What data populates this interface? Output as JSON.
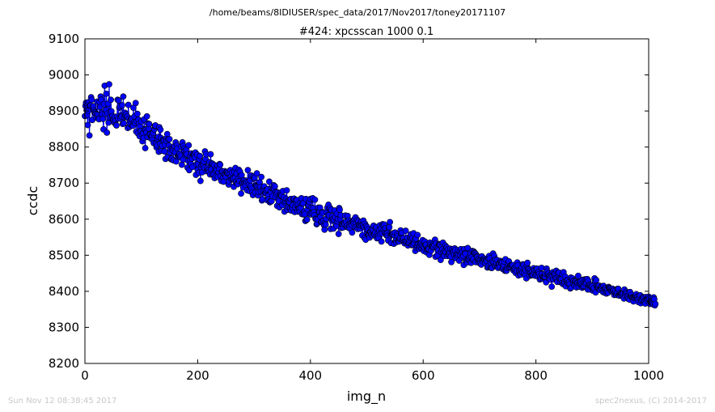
{
  "header": {
    "file_path": "/home/beams/8IDIUSER/spec_data/2017/Nov2017/toney20171107"
  },
  "footer": {
    "timestamp": "Sun Nov 12 08:38:45 2017",
    "credit": "spec2nexus, (C) 2014-2017"
  },
  "chart_data": {
    "type": "line",
    "title": "#424: xpcsscan 1000 0.1",
    "xlabel": "img_n",
    "ylabel": "ccdc",
    "xlim": [
      0,
      1000
    ],
    "ylim": [
      8200,
      9100
    ],
    "xticks": [
      0,
      200,
      400,
      600,
      800,
      1000
    ],
    "yticks": [
      8200,
      8300,
      8400,
      8500,
      8600,
      8700,
      8800,
      8900,
      9000,
      9100
    ],
    "grid": false,
    "marker": "circle",
    "series_color": "#0000ff",
    "marker_face_color": "#0000ff",
    "marker_edge_color": "#000000",
    "series": [
      {
        "x_start": 0,
        "x_step": 1,
        "values": [
          8886,
          8914,
          8923,
          8902,
          8889,
          8861,
          8900,
          8925,
          8832,
          8916,
          8915,
          8938,
          8931,
          8875,
          8911,
          8913,
          8902,
          8897,
          8895,
          8892,
          8882,
          8891,
          8926,
          8889,
          8879,
          8877,
          8925,
          8911,
          8940,
          8931,
          8895,
          8891,
          8878,
          8849,
          8919,
          8970,
          8892,
          8903,
          8948,
          8840,
          8893,
          8920,
          8868,
          8974,
          8881,
          8897,
          8931,
          8899,
          8880,
          8886,
          8877,
          8874,
          8868,
          8884,
          8873,
          8862,
          8860,
          8884,
          8931,
          8879,
          8929,
          8909,
          8913,
          8879,
          8888,
          8885,
          8916,
          8864,
          8940,
          8866,
          8883,
          8895,
          8887,
          8891,
          8883,
          8885,
          8853,
          8917,
          8879,
          8856,
          8872,
          8863,
          8879,
          8877,
          8860,
          8859,
          8909,
          8869,
          8885,
          8866,
          8922,
          8843,
          8872,
          8892,
          8838,
          8876,
          8865,
          8830,
          8857,
          8844,
          8871,
          8835,
          8816,
          8839,
          8825,
          8877,
          8849,
          8797,
          8848,
          8841,
          8885,
          8828,
          8865,
          8851,
          8864,
          8836,
          8835,
          8824,
          8830,
          8831,
          8820,
          8839,
          8811,
          8849,
          8858,
          8860,
          8809,
          8799,
          8805,
          8823,
          8828,
          8787,
          8855,
          8809,
          8848,
          8825,
          8790,
          8804,
          8818,
          8820,
          8818,
          8788,
          8807,
          8767,
          8823,
          8817,
          8836,
          8773,
          8822,
          8804,
          8822,
          8785,
          8795,
          8766,
          8768,
          8796,
          8791,
          8763,
          8799,
          8803,
          8785,
          8813,
          8760,
          8805,
          8796,
          8774,
          8777,
          8778,
          8781,
          8772,
          8776,
          8801,
          8751,
          8813,
          8765,
          8803,
          8795,
          8789,
          8778,
          8782,
          8792,
          8780,
          8743,
          8762,
          8805,
          8736,
          8765,
          8775,
          8753,
          8782,
          8768,
          8745,
          8780,
          8778,
          8779,
          8771,
          8785,
          8723,
          8752,
          8779,
          8737,
          8753,
          8729,
          8766,
          8775,
          8706,
          8744,
          8751,
          8730,
          8754,
          8751,
          8760,
          8743,
          8788,
          8767,
          8780,
          8733,
          8742,
          8736,
          8737,
          8731,
          8758,
          8724,
          8780,
          8738,
          8755,
          8725,
          8753,
          8724,
          8750,
          8714,
          8735,
          8740,
          8719,
          8737,
          8749,
          8717,
          8730,
          8741,
          8753,
          8751,
          8720,
          8706,
          8732,
          8733,
          8716,
          8704,
          8725,
          8733,
          8725,
          8718,
          8731,
          8731,
          8727,
          8728,
          8696,
          8705,
          8726,
          8736,
          8718,
          8710,
          8729,
          8711,
          8713,
          8690,
          8731,
          8715,
          8742,
          8704,
          8727,
          8698,
          8697,
          8712,
          8737,
          8706,
          8732,
          8720,
          8671,
          8722,
          8702,
          8700,
          8688,
          8708,
          8700,
          8702,
          8695,
          8707,
          8703,
          8680,
          8736,
          8703,
          8696,
          8678,
          8708,
          8692,
          8721,
          8684,
          8675,
          8667,
          8719,
          8713,
          8715,
          8674,
          8694,
          8692,
          8727,
          8691,
          8666,
          8675,
          8693,
          8702,
          8689,
          8677,
          8717,
          8652,
          8655,
          8679,
          8688,
          8691,
          8679,
          8672,
          8673,
          8681,
          8653,
          8683,
          8665,
          8655,
          8704,
          8647,
          8650,
          8676,
          8650,
          8686,
          8664,
          8685,
          8694,
          8684,
          8691,
          8661,
          8675,
          8670,
          8637,
          8674,
          8654,
          8650,
          8633,
          8672,
          8668,
          8669,
          8665,
          8639,
          8678,
          8650,
          8661,
          8621,
          8646,
          8650,
          8656,
          8680,
          8626,
          8650,
          8633,
          8651,
          8647,
          8631,
          8656,
          8624,
          8635,
          8632,
          8639,
          8656,
          8657,
          8620,
          8633,
          8653,
          8640,
          8653,
          8621,
          8640,
          8630,
          8630,
          8621,
          8646,
          8632,
          8658,
          8614,
          8643,
          8644,
          8613,
          8621,
          8614,
          8595,
          8656,
          8598,
          8599,
          8627,
          8638,
          8638,
          8648,
          8615,
          8656,
          8613,
          8632,
          8617,
          8658,
          8630,
          8619,
          8611,
          8654,
          8601,
          8600,
          8586,
          8589,
          8599,
          8632,
          8620,
          8621,
          8632,
          8607,
          8592,
          8593,
          8620,
          8618,
          8596,
          8584,
          8571,
          8590,
          8585,
          8601,
          8619,
          8632,
          8611,
          8640,
          8611,
          8629,
          8631,
          8573,
          8626,
          8596,
          8608,
          8600,
          8574,
          8597,
          8624,
          8606,
          8586,
          8581,
          8615,
          8594,
          8600,
          8559,
          8631,
          8626,
          8600,
          8611,
          8576,
          8587,
          8585,
          8577,
          8586,
          8590,
          8588,
          8610,
          8593,
          8579,
          8581,
          8609,
          8577,
          8597,
          8579,
          8574,
          8594,
          8589,
          8583,
          8563,
          8593,
          8593,
          8588,
          8600,
          8578,
          8605,
          8589,
          8579,
          8598,
          8573,
          8594,
          8584,
          8583,
          8574,
          8582,
          8593,
          8584,
          8555,
          8584,
          8596,
          8579,
          8548,
          8587,
          8543,
          8581,
          8572,
          8578,
          8571,
          8557,
          8556,
          8549,
          8565,
          8565,
          8558,
          8573,
          8555,
          8570,
          8582,
          8558,
          8558,
          8563,
          8575,
          8578,
          8547,
          8558,
          8553,
          8548,
          8569,
          8583,
          8559,
          8574,
          8538,
          8561,
          8586,
          8583,
          8571,
          8585,
          8564,
          8575,
          8561,
          8555,
          8561,
          8554,
          8541,
          8575,
          8578,
          8592,
          8554,
          8534,
          8558,
          8557,
          8558,
          8561,
          8532,
          8555,
          8563,
          8538,
          8536,
          8545,
          8558,
          8553,
          8539,
          8538,
          8546,
          8548,
          8569,
          8560,
          8562,
          8548,
          8542,
          8547,
          8537,
          8533,
          8538,
          8568,
          8535,
          8539,
          8548,
          8527,
          8534,
          8536,
          8542,
          8549,
          8558,
          8546,
          8528,
          8548,
          8529,
          8561,
          8533,
          8543,
          8512,
          8546,
          8521,
          8526,
          8556,
          8530,
          8522,
          8518,
          8524,
          8534,
          8532,
          8520,
          8527,
          8542,
          8524,
          8512,
          8522,
          8538,
          8528,
          8529,
          8508,
          8516,
          8518,
          8520,
          8517,
          8501,
          8535,
          8529,
          8513,
          8525,
          8525,
          8522,
          8524,
          8532,
          8528,
          8543,
          8496,
          8533,
          8520,
          8499,
          8517,
          8514,
          8531,
          8529,
          8528,
          8487,
          8509,
          8524,
          8516,
          8535,
          8508,
          8498,
          8511,
          8527,
          8508,
          8521,
          8522,
          8498,
          8516,
          8502,
          8504,
          8509,
          8518,
          8496,
          8481,
          8513,
          8517,
          8508,
          8512,
          8502,
          8519,
          8514,
          8492,
          8501,
          8501,
          8496,
          8514,
          8501,
          8485,
          8511,
          8500,
          8517,
          8507,
          8494,
          8510,
          8498,
          8473,
          8517,
          8506,
          8504,
          8485,
          8482,
          8480,
          8520,
          8488,
          8490,
          8495,
          8500,
          8506,
          8479,
          8495,
          8512,
          8487,
          8489,
          8510,
          8507,
          8506,
          8481,
          8502,
          8497,
          8495,
          8484,
          8490,
          8479,
          8486,
          8486,
          8479,
          8474,
          8497,
          8487,
          8483,
          8490,
          8491,
          8487,
          8479,
          8489,
          8486,
          8484,
          8466,
          8469,
          8490,
          8498,
          8491,
          8467,
          8478,
          8465,
          8465,
          8483,
          8505,
          8480,
          8498,
          8471,
          8488,
          8470,
          8479,
          8487,
          8467,
          8465,
          8476,
          8475,
          8468,
          8484,
          8481,
          8477,
          8480,
          8462,
          8465,
          8473,
          8482,
          8457,
          8489,
          8457,
          8457,
          8465,
          8470,
          8477,
          8483,
          8466,
          8467,
          8472,
          8471,
          8466,
          8471,
          8473,
          8458,
          8462,
          8465,
          8460,
          8451,
          8471,
          8457,
          8480,
          8472,
          8444,
          8458,
          8454,
          8448,
          8446,
          8461,
          8466,
          8452,
          8475,
          8473,
          8451,
          8463,
          8445,
          8458,
          8436,
          8471,
          8479,
          8463,
          8457,
          8461,
          8443,
          8457,
          8451,
          8445,
          8445,
          8456,
          8445,
          8464,
          8451,
          8459,
          8443,
          8460,
          8446,
          8463,
          8442,
          8452,
          8454,
          8448,
          8433,
          8441,
          8435,
          8465,
          8448,
          8440,
          8435,
          8439,
          8440,
          8440,
          8449,
          8425,
          8463,
          8455,
          8447,
          8449,
          8436,
          8444,
          8433,
          8445,
          8441,
          8413,
          8444,
          8453,
          8433,
          8449,
          8445,
          8449,
          8436,
          8457,
          8436,
          8426,
          8452,
          8442,
          8452,
          8436,
          8426,
          8435,
          8433,
          8423,
          8448,
          8420,
          8453,
          8422,
          8426,
          8441,
          8414,
          8429,
          8431,
          8424,
          8432,
          8422,
          8427,
          8420,
          8408,
          8438,
          8411,
          8433,
          8436,
          8421,
          8430,
          8417,
          8428,
          8421,
          8427,
          8411,
          8424,
          8423,
          8443,
          8413,
          8422,
          8425,
          8427,
          8419,
          8414,
          8410,
          8432,
          8413,
          8415,
          8424,
          8433,
          8421,
          8433,
          8423,
          8434,
          8405,
          8429,
          8417,
          8419,
          8405,
          8417,
          8413,
          8411,
          8414,
          8402,
          8406,
          8409,
          8436,
          8428,
          8397,
          8431,
          8414,
          8409,
          8412,
          8410,
          8416,
          8405,
          8404,
          8411,
          8413,
          8407,
          8414,
          8398,
          8415,
          8406,
          8396,
          8408,
          8409,
          8394,
          8399,
          8407,
          8396,
          8412,
          8410,
          8408,
          8406,
          8402,
          8404,
          8401,
          8407,
          8402,
          8403,
          8390,
          8397,
          8402,
          8392,
          8390,
          8395,
          8407,
          8407,
          8389,
          8388,
          8395,
          8391,
          8389,
          8394,
          8393,
          8387,
          8395,
          8380,
          8405,
          8391,
          8386,
          8399,
          8395,
          8387,
          8384,
          8379,
          8397,
          8377,
          8398,
          8387,
          8386,
          8390,
          8383,
          8382,
          8372,
          8382,
          8383,
          8387,
          8387,
          8392,
          8383,
          8385,
          8379,
          8370,
          8387,
          8381,
          8389,
          8367,
          8374,
          8380,
          8376,
          8384,
          8382,
          8370,
          8373,
          8366,
          8384,
          8378,
          8375,
          8380,
          8379,
          8385,
          8380,
          8365,
          8372,
          8370,
          8371,
          8369,
          8367,
          8364,
          8383,
          8378,
          8361,
          8365
        ]
      }
    ]
  }
}
